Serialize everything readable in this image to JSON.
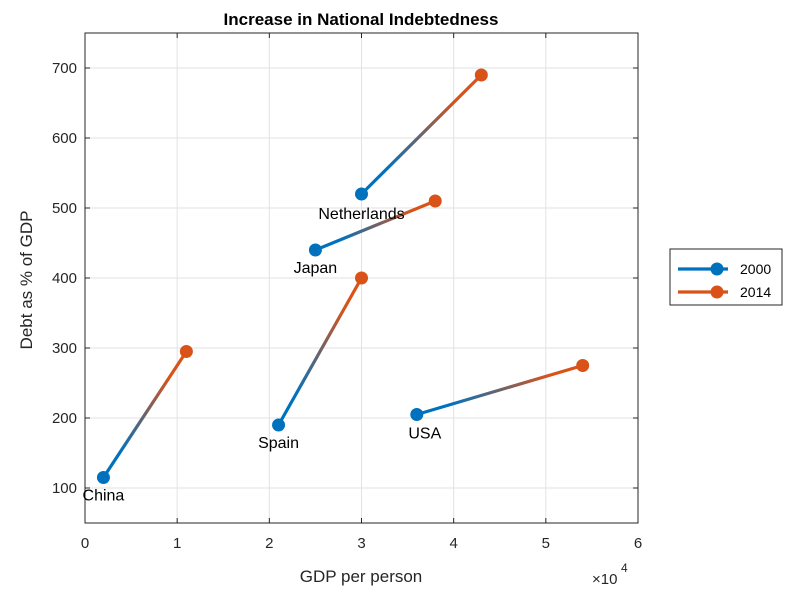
{
  "chart_data": {
    "type": "scatter",
    "title": "Increase in National Indebtedness",
    "xlabel": "GDP per person",
    "ylabel": "Debt as % of GDP",
    "x_exponent_label": "×10",
    "x_exponent_power": "4",
    "xlim": [
      0,
      60000
    ],
    "ylim": [
      50,
      750
    ],
    "x_tick_values": [
      0,
      10000,
      20000,
      30000,
      40000,
      50000,
      60000
    ],
    "x_tick_labels": [
      "0",
      "1",
      "2",
      "3",
      "4",
      "5",
      "6"
    ],
    "y_ticks": [
      100,
      200,
      300,
      400,
      500,
      600,
      700
    ],
    "grid": true,
    "legend_placement": "outside-right",
    "series": [
      {
        "name": "2000",
        "color": "#0072BD"
      },
      {
        "name": "2014",
        "color": "#D95319"
      }
    ],
    "countries": [
      {
        "name": "China",
        "x2000": 2000,
        "y2000": 115,
        "x2014": 11000,
        "y2014": 295
      },
      {
        "name": "Spain",
        "x2000": 21000,
        "y2000": 190,
        "x2014": 30000,
        "y2014": 400
      },
      {
        "name": "Japan",
        "x2000": 25000,
        "y2000": 440,
        "x2014": 38000,
        "y2014": 510
      },
      {
        "name": "Netherlands",
        "x2000": 30000,
        "y2000": 520,
        "x2014": 43000,
        "y2014": 690
      },
      {
        "name": "USA",
        "x2000": 36000,
        "y2000": 205,
        "x2014": 54000,
        "y2014": 275
      }
    ]
  }
}
